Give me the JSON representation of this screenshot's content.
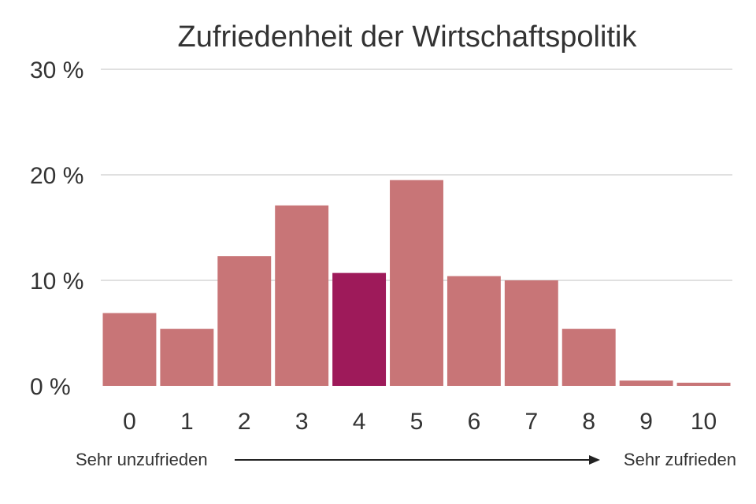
{
  "chart_data": {
    "type": "bar",
    "title": "Zufriedenheit der Wirtschaftspolitik",
    "categories": [
      "0",
      "1",
      "2",
      "3",
      "4",
      "5",
      "6",
      "7",
      "8",
      "9",
      "10"
    ],
    "values": [
      6.9,
      5.4,
      12.3,
      17.1,
      10.7,
      19.5,
      10.4,
      10.0,
      5.4,
      0.5,
      0.3
    ],
    "ylim": [
      0,
      30
    ],
    "yticks": [
      "0 %",
      "10 %",
      "20 %",
      "30 %"
    ],
    "grid": true,
    "highlight_index": 4,
    "colors": {
      "bar": "#c87577",
      "highlight": "#9e1a5a",
      "grid": "#d6d6d6",
      "text": "#333333"
    },
    "scale_left_label": "Sehr unzufrieden",
    "scale_right_label": "Sehr zufrieden"
  }
}
